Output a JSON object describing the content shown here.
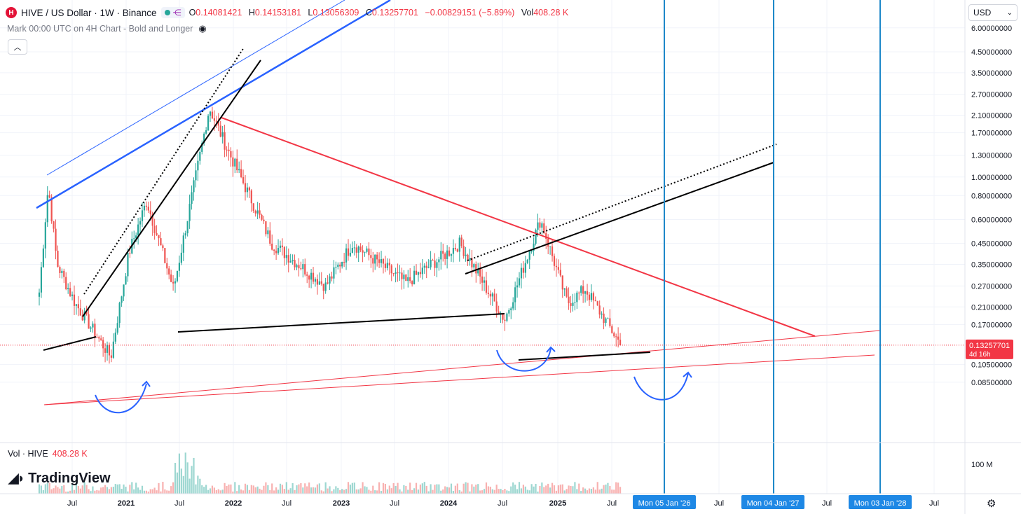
{
  "header": {
    "symbol": "HIVE / US Dollar · 1W · Binance",
    "logo_icon": "hive-logo-icon",
    "open_label": "O",
    "open": "0.14081421",
    "high_label": "H",
    "high": "0.14153181",
    "low_label": "L",
    "low": "0.13056309",
    "close_label": "C",
    "close": "0.13257701",
    "change": "−0.00829151 (−5.89%)",
    "vol_label": "Vol",
    "vol": "408.28 K",
    "subtitle": "Mark 00:00 UTC on 4H Chart - Bold and Longer",
    "eye_icon": "hide-eye-icon",
    "collapse_icon": "chevron-up-icon"
  },
  "currency": {
    "label": "USD",
    "icon": "chevron-down-icon"
  },
  "volume_legend": {
    "label": "Vol · HIVE",
    "value": "408.28 K"
  },
  "brand": {
    "name": "TradingView",
    "icon": "tradingview-logo-icon"
  },
  "settings_icon": "gear-icon",
  "colors": {
    "up": "#26a69a",
    "down": "#ef5350",
    "red_line": "#f23645",
    "blue_line": "#2962ff",
    "vertical_line": "#1e88c9",
    "grid": "#f0f3fa",
    "price_tag": "#f23645",
    "date_tag": "#1e88e5"
  },
  "chart_data": {
    "type": "candlestick",
    "scale": "log",
    "y_ticks": [
      "6.00000000",
      "4.50000000",
      "3.50000000",
      "2.70000000",
      "2.10000000",
      "1.70000000",
      "1.30000000",
      "1.00000000",
      "0.80000000",
      "0.60000000",
      "0.45000000",
      "0.35000000",
      "0.27000000",
      "0.21000000",
      "0.17000000",
      "0.10500000",
      "0.08500000"
    ],
    "x_ticks": [
      "Jul",
      "2021",
      "Jul",
      "2022",
      "Jul",
      "2023",
      "Jul",
      "2024",
      "Jul",
      "2025",
      "Jul",
      "Mon 05 Jan '26",
      "Jul",
      "Mon 04 Jan '27",
      "Jul",
      "Mon 03 Jan '28",
      "Jul"
    ],
    "highlighted_x_ticks": [
      "Mon 05 Jan '26",
      "Mon 04 Jan '27",
      "Mon 03 Jan '28"
    ],
    "last_price": "0.13257701",
    "countdown": "4d 16h",
    "volume_axis_label": "100 M",
    "key_points": [
      {
        "date": "2020-04",
        "close": 0.25
      },
      {
        "date": "2020-05",
        "close": 0.9
      },
      {
        "date": "2020-06",
        "close": 0.35
      },
      {
        "date": "2020-08",
        "close": 0.22
      },
      {
        "date": "2020-12",
        "close": 0.115
      },
      {
        "date": "2021-02",
        "close": 0.4
      },
      {
        "date": "2021-04",
        "close": 0.75
      },
      {
        "date": "2021-07",
        "close": 0.26
      },
      {
        "date": "2021-11",
        "close": 2.3
      },
      {
        "date": "2022-01",
        "close": 1.4
      },
      {
        "date": "2022-06",
        "close": 0.45
      },
      {
        "date": "2022-12",
        "close": 0.27
      },
      {
        "date": "2023-03",
        "close": 0.45
      },
      {
        "date": "2023-09",
        "close": 0.28
      },
      {
        "date": "2024-03",
        "close": 0.45
      },
      {
        "date": "2024-08",
        "close": 0.18
      },
      {
        "date": "2024-12",
        "close": 0.6
      },
      {
        "date": "2025-03",
        "close": 0.22
      },
      {
        "date": "2025-05",
        "close": 0.26
      },
      {
        "date": "2025-09",
        "close": 0.1326
      }
    ]
  }
}
